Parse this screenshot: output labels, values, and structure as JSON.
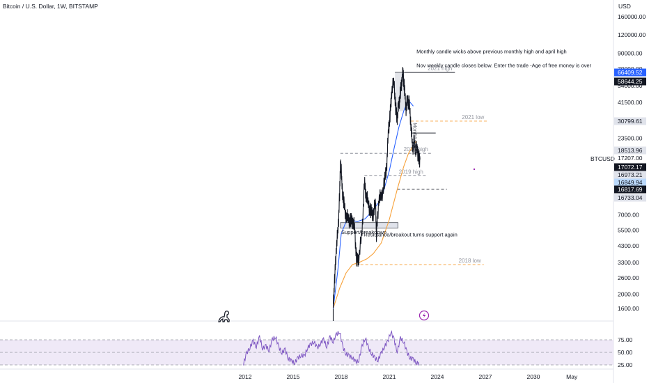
{
  "header": {
    "title": "Bitcoin / U.S. Dollar, 1W, BITSTAMP"
  },
  "axis": {
    "currency": "USD",
    "symbol": "BTCUSD"
  },
  "chart_data": {
    "type": "line",
    "title": "Bitcoin / U.S. Dollar, 1W, BITSTAMP",
    "y_scale": "log",
    "y_ticks": [
      "160000.00",
      "120000.00",
      "90000.00",
      "70000.00",
      "54000.00",
      "41500.00",
      "23500.00",
      "17207.00",
      "7000.00",
      "5500.00",
      "4300.00",
      "3300.00",
      "2600.00",
      "2000.00",
      "1600.00"
    ],
    "y_tick_values": [
      160000,
      120000,
      90000,
      70000,
      54000,
      41500,
      23500,
      17207,
      7000,
      5500,
      4300,
      3300,
      2600,
      2000,
      1600
    ],
    "x_ticks": [
      "2012",
      "2015",
      "2018",
      "2021",
      "2024",
      "2027",
      "2030",
      "May"
    ],
    "x_tick_years": [
      2012,
      2015,
      2018,
      2021,
      2024,
      2027,
      2030,
      2032.4
    ],
    "price_tags": [
      {
        "label": "66409.52",
        "value": 66409.52,
        "color": "#2962ff",
        "text_color": "#ffffff"
      },
      {
        "label": "58644.25",
        "value": 58644.25,
        "color": "#131722",
        "text_color": "#ffffff"
      },
      {
        "label": "30799.61",
        "value": 30799.61,
        "color": "#e0e3eb",
        "text_color": "#131722"
      },
      {
        "label": "18513.96",
        "value": 18513.96,
        "color": "#e0e3eb",
        "text_color": "#131722"
      },
      {
        "label": "17072.17",
        "value": 17072.17,
        "color": "#131722",
        "text_color": "#ffffff"
      },
      {
        "label": "16973.21",
        "value": 16973.21,
        "color": "#e0e3eb",
        "text_color": "#131722"
      },
      {
        "label": "16849.94",
        "value": 16849.94,
        "color": "#bbd9fb",
        "text_color": "#131722"
      },
      {
        "label": "16817.69",
        "value": 16817.69,
        "color": "#131722",
        "text_color": "#ffffff"
      },
      {
        "label": "16733.04",
        "value": 16733.04,
        "color": "#e0e3eb",
        "text_color": "#131722"
      }
    ],
    "price_series": {
      "name": "",
      "x": [
        2017.5,
        2017.6,
        2017.7,
        2017.8,
        2017.9,
        2017.96,
        2018.05,
        2018.15,
        2018.3,
        2018.45,
        2018.6,
        2018.75,
        2018.85,
        2018.95,
        2019.1,
        2019.3,
        2019.45,
        2019.55,
        2019.7,
        2019.85,
        2020.0,
        2020.15,
        2020.2,
        2020.35,
        2020.5,
        2020.7,
        2020.85,
        2020.95,
        2021.05,
        2021.15,
        2021.3,
        2021.4,
        2021.5,
        2021.6,
        2021.7,
        2021.8,
        2021.87,
        2021.95,
        2022.05,
        2022.15,
        2022.25,
        2022.35,
        2022.45,
        2022.55,
        2022.65,
        2022.75,
        2022.85,
        2022.92
      ],
      "y": [
        1700,
        2600,
        4300,
        5500,
        9500,
        17200,
        11000,
        8500,
        7000,
        6500,
        6300,
        6400,
        5500,
        3400,
        3600,
        5300,
        11500,
        9800,
        8200,
        7300,
        7200,
        8500,
        5000,
        9200,
        9200,
        11500,
        16000,
        27000,
        33000,
        50000,
        57000,
        37000,
        33000,
        40000,
        48000,
        61000,
        66000,
        50000,
        38000,
        43000,
        40000,
        30000,
        20000,
        22000,
        20000,
        19500,
        17000,
        16800
      ]
    },
    "ma_blue": {
      "name": "",
      "x": [
        2017.5,
        2017.8,
        2018.0,
        2018.3,
        2018.6,
        2019.0,
        2019.5,
        2020.0,
        2020.5,
        2021.0,
        2021.3,
        2021.6,
        2021.9,
        2022.1,
        2022.3,
        2022.5
      ],
      "y": [
        1600,
        3000,
        5200,
        6300,
        6500,
        6300,
        6600,
        7600,
        9000,
        14000,
        20000,
        28000,
        36000,
        41000,
        41500,
        39000
      ]
    },
    "ma_orange": {
      "name": "",
      "x": [
        2017.5,
        2017.9,
        2018.3,
        2018.7,
        2019.1,
        2019.6,
        2020.0,
        2020.5,
        2021.0,
        2021.5,
        2021.9,
        2022.2,
        2022.5,
        2022.7
      ],
      "y": [
        1600,
        2200,
        2800,
        3200,
        3300,
        3500,
        3800,
        4500,
        6500,
        10500,
        15000,
        18500,
        21000,
        22500
      ]
    },
    "rsi": {
      "ticks": [
        "75.00",
        "50.00",
        "25.00"
      ],
      "x": [
        2011.9,
        2012.1,
        2012.3,
        2012.5,
        2012.7,
        2012.9,
        2013.1,
        2013.3,
        2013.5,
        2013.7,
        2013.9,
        2014.1,
        2014.3,
        2014.5,
        2014.7,
        2014.9,
        2015.1,
        2015.3,
        2015.5,
        2015.7,
        2015.9,
        2016.1,
        2016.3,
        2016.5,
        2016.7,
        2016.9,
        2017.1,
        2017.3,
        2017.5,
        2017.7,
        2017.9,
        2018.1,
        2018.3,
        2018.5,
        2018.7,
        2018.9,
        2019.1,
        2019.3,
        2019.5,
        2019.7,
        2019.9,
        2020.1,
        2020.3,
        2020.5,
        2020.7,
        2020.9,
        2021.1,
        2021.3,
        2021.5,
        2021.7,
        2021.9,
        2022.1,
        2022.3,
        2022.5,
        2022.7,
        2022.9
      ],
      "y": [
        28,
        48,
        60,
        72,
        62,
        80,
        58,
        62,
        55,
        75,
        82,
        60,
        50,
        55,
        38,
        32,
        30,
        38,
        45,
        42,
        60,
        65,
        72,
        58,
        68,
        75,
        62,
        80,
        72,
        85,
        92,
        60,
        48,
        42,
        40,
        30,
        35,
        62,
        80,
        58,
        48,
        38,
        35,
        48,
        62,
        70,
        92,
        75,
        52,
        78,
        72,
        50,
        40,
        35,
        30,
        26
      ]
    },
    "levels": [
      {
        "label": "2021 high",
        "value": 66409.52,
        "x0": 2021.35,
        "x1": 2025.1,
        "color": "#131722",
        "style": "solid"
      },
      {
        "label": "2021 low",
        "value": 30799.61,
        "x0": 2022.35,
        "x1": 2027.1,
        "color": "#f7a23b",
        "style": "dashed"
      },
      {
        "label": "2018 high",
        "value": 18513.96,
        "x0": 2017.95,
        "x1": 2023.6,
        "color": "#787b86",
        "style": "dashed"
      },
      {
        "label": "2019 high",
        "value": 13000,
        "x0": 2019.45,
        "x1": 2023.3,
        "color": "#787b86",
        "style": "dashed"
      },
      {
        "label": "",
        "value": 10500,
        "x0": 2021.5,
        "x1": 2024.6,
        "color": "#131722",
        "style": "dashed"
      },
      {
        "label": "2018 low",
        "value": 3200,
        "x0": 2018.9,
        "x1": 2026.9,
        "color": "#f7a23b",
        "style": "dashed"
      }
    ],
    "annotations": [
      {
        "text": "Monthly candle wicks above previous monthly high and april high",
        "x": 2022.7,
        "y": 90000
      },
      {
        "text": "Nov weekly candle closes below. Enter the trade -Age of free money is over",
        "x": 2022.7,
        "y": 72000
      },
      {
        "text": "Support/breakdown",
        "x": 2018.0,
        "y": 5200
      },
      {
        "text": "Resistance/breakout turns support again",
        "x": 2019.4,
        "y": 5000
      },
      {
        "text": "Monthly gold",
        "x": 2022.5,
        "y": 30000
      }
    ]
  }
}
